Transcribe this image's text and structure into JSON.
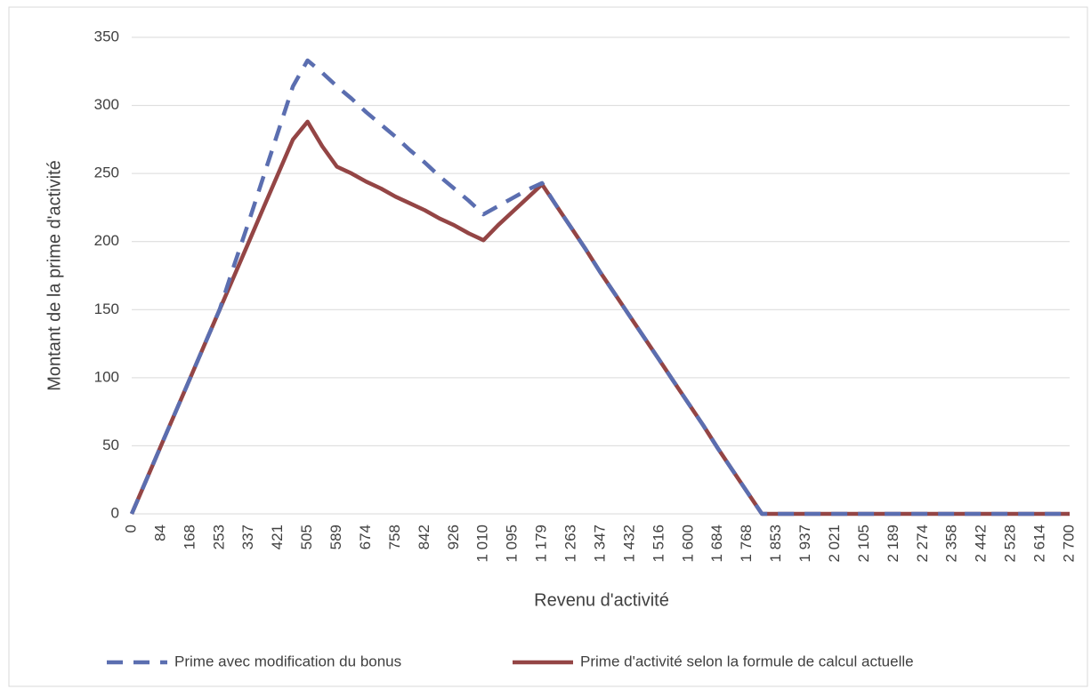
{
  "chart_data": {
    "type": "line",
    "x_label": "Revenu d'activité",
    "y_label": "Montant de la prime d'activité",
    "categories": [
      "0",
      null,
      "84",
      null,
      "168",
      null,
      "253",
      null,
      "337",
      null,
      "421",
      null,
      "505",
      null,
      "589",
      null,
      "674",
      null,
      "758",
      null,
      "842",
      null,
      "926",
      null,
      "1 010",
      null,
      "1 095",
      null,
      "1 179",
      null,
      "1 263",
      null,
      "1 347",
      null,
      "1 432",
      null,
      "1 516",
      null,
      "1 600",
      null,
      "1 684",
      null,
      "1 768",
      null,
      "1 853",
      null,
      "1 937",
      null,
      "2 021",
      null,
      "2 105",
      null,
      "2 189",
      null,
      "2 274",
      null,
      "2 358",
      null,
      "2 442",
      null,
      "2 528",
      null,
      "2 614",
      null,
      "2 700"
    ],
    "series": [
      {
        "name": "Prime avec modification du bonus",
        "color": "#5b6eb0",
        "dashed": true,
        "values": [
          0,
          25,
          50,
          75,
          100,
          125,
          150,
          183,
          215,
          248,
          281,
          314,
          333,
          324,
          314,
          305,
          295,
          286,
          277,
          267,
          258,
          248,
          239,
          230,
          220,
          226,
          232,
          238,
          243,
          226,
          210,
          194,
          177,
          161,
          145,
          129,
          113,
          97,
          81,
          65,
          48,
          32,
          16,
          0,
          0,
          0,
          0,
          0,
          0,
          0,
          0,
          0,
          0,
          0,
          0,
          0,
          0,
          0,
          0,
          0,
          0,
          0,
          0,
          0,
          0
        ]
      },
      {
        "name": "Prime d'activité selon la formule de calcul actuelle",
        "color": "#944545",
        "dashed": false,
        "values": [
          0,
          25,
          50,
          75,
          100,
          125,
          150,
          175,
          200,
          225,
          250,
          275,
          288,
          270,
          255,
          250,
          244,
          239,
          233,
          228,
          223,
          217,
          212,
          206,
          201,
          212,
          222,
          232,
          242,
          226,
          210,
          194,
          177,
          161,
          145,
          129,
          113,
          97,
          81,
          65,
          48,
          32,
          16,
          0,
          0,
          0,
          0,
          0,
          0,
          0,
          0,
          0,
          0,
          0,
          0,
          0,
          0,
          0,
          0,
          0,
          0,
          0,
          0,
          0,
          0
        ]
      }
    ],
    "ylim": [
      0,
      350
    ],
    "yticks": [
      0,
      50,
      100,
      150,
      200,
      250,
      300,
      350
    ],
    "grid": true,
    "legend": "bottom"
  }
}
